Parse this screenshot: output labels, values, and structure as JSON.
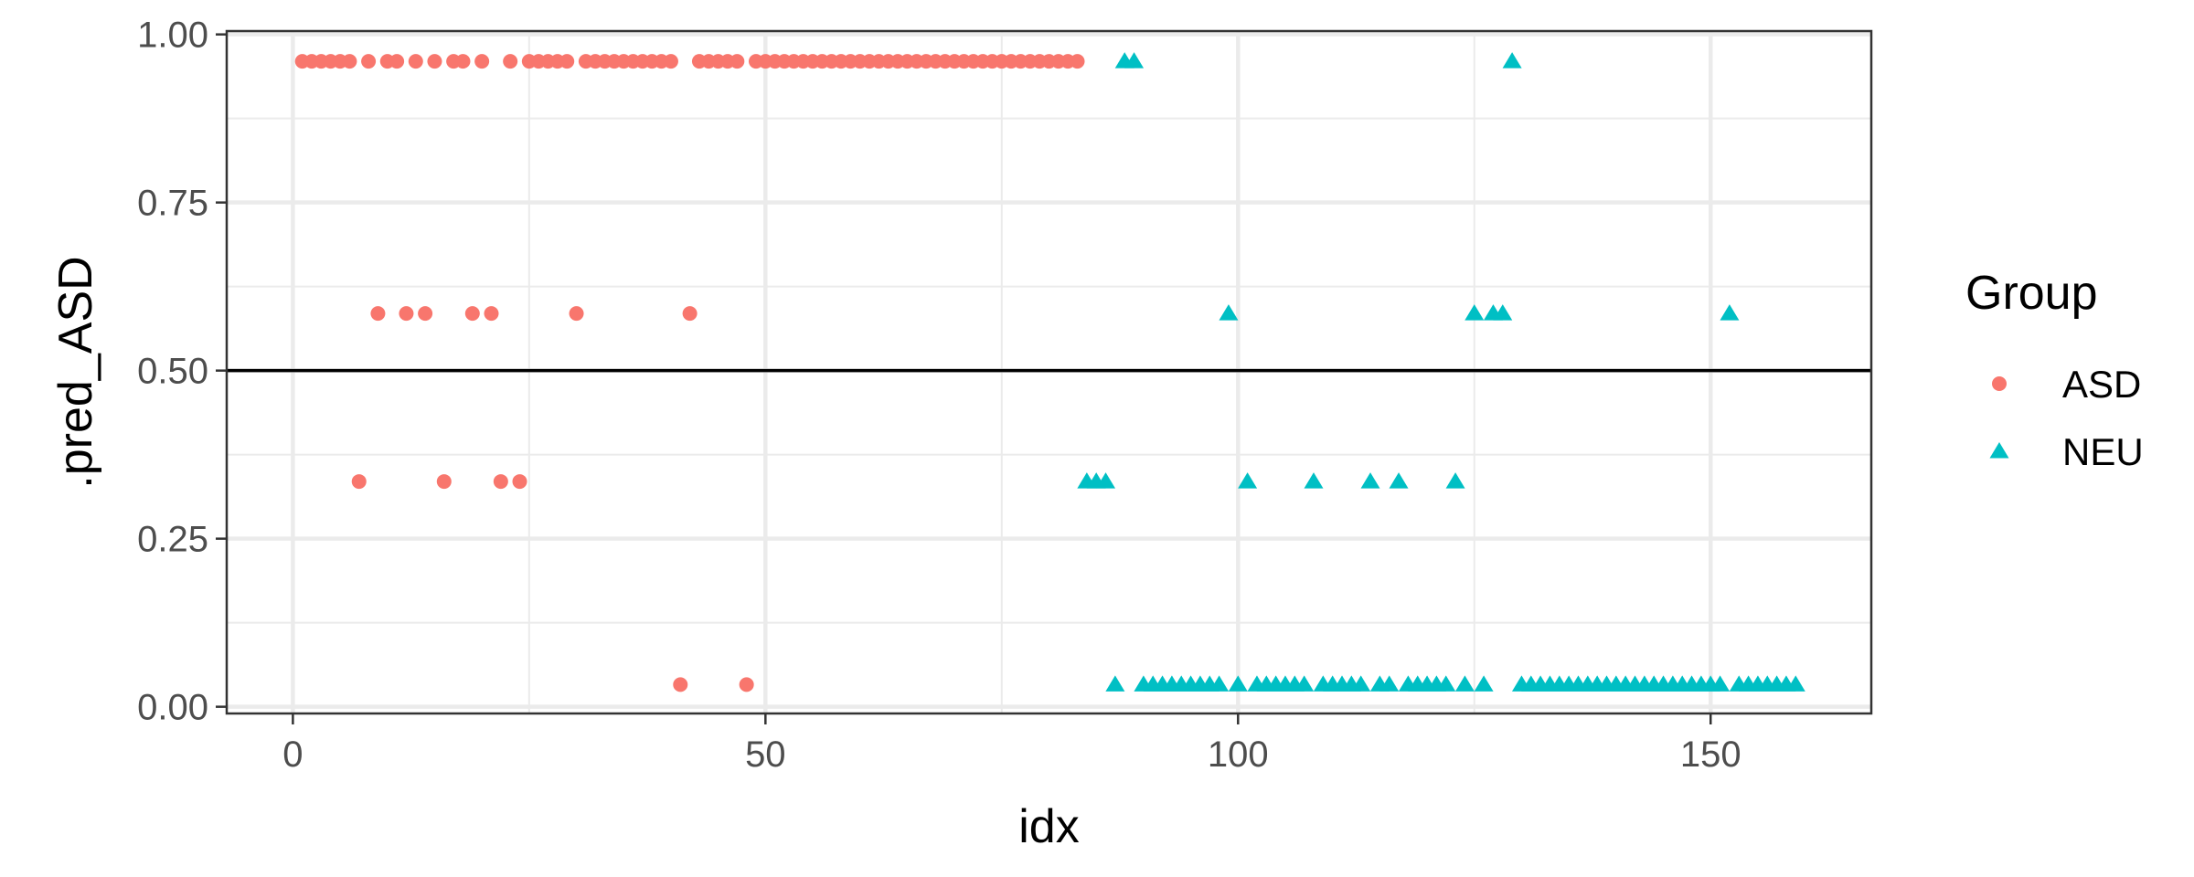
{
  "chart_data": {
    "type": "scatter",
    "title": "",
    "xlabel": "idx",
    "ylabel": ".pred_ASD",
    "xlim": [
      -7,
      167
    ],
    "ylim": [
      -0.01,
      1.005
    ],
    "x_ticks": [
      0,
      50,
      100,
      150
    ],
    "x_tick_labels": [
      "0",
      "50",
      "100",
      "150"
    ],
    "y_ticks": [
      0.0,
      0.25,
      0.5,
      0.75,
      1.0
    ],
    "y_tick_labels": [
      "0.00",
      "0.25",
      "0.50",
      "0.75",
      "1.00"
    ],
    "reference_line_y": 0.5,
    "grid": true,
    "legend_title": "Group",
    "legend_position": "right",
    "series": [
      {
        "name": "ASD",
        "marker": "circle",
        "color": "#F8766D",
        "points": [
          [
            1,
            0.96
          ],
          [
            2,
            0.96
          ],
          [
            3,
            0.96
          ],
          [
            4,
            0.96
          ],
          [
            5,
            0.96
          ],
          [
            6,
            0.96
          ],
          [
            8,
            0.96
          ],
          [
            10,
            0.96
          ],
          [
            11,
            0.96
          ],
          [
            13,
            0.96
          ],
          [
            15,
            0.96
          ],
          [
            17,
            0.96
          ],
          [
            18,
            0.96
          ],
          [
            20,
            0.96
          ],
          [
            23,
            0.96
          ],
          [
            25,
            0.96
          ],
          [
            26,
            0.96
          ],
          [
            27,
            0.96
          ],
          [
            28,
            0.96
          ],
          [
            29,
            0.96
          ],
          [
            31,
            0.96
          ],
          [
            32,
            0.96
          ],
          [
            33,
            0.96
          ],
          [
            34,
            0.96
          ],
          [
            35,
            0.96
          ],
          [
            36,
            0.96
          ],
          [
            37,
            0.96
          ],
          [
            38,
            0.96
          ],
          [
            39,
            0.96
          ],
          [
            40,
            0.96
          ],
          [
            43,
            0.96
          ],
          [
            44,
            0.96
          ],
          [
            45,
            0.96
          ],
          [
            46,
            0.96
          ],
          [
            47,
            0.96
          ],
          [
            49,
            0.96
          ],
          [
            50,
            0.96
          ],
          [
            51,
            0.96
          ],
          [
            52,
            0.96
          ],
          [
            53,
            0.96
          ],
          [
            54,
            0.96
          ],
          [
            55,
            0.96
          ],
          [
            56,
            0.96
          ],
          [
            57,
            0.96
          ],
          [
            58,
            0.96
          ],
          [
            59,
            0.96
          ],
          [
            60,
            0.96
          ],
          [
            61,
            0.96
          ],
          [
            62,
            0.96
          ],
          [
            63,
            0.96
          ],
          [
            64,
            0.96
          ],
          [
            65,
            0.96
          ],
          [
            66,
            0.96
          ],
          [
            67,
            0.96
          ],
          [
            68,
            0.96
          ],
          [
            69,
            0.96
          ],
          [
            70,
            0.96
          ],
          [
            71,
            0.96
          ],
          [
            72,
            0.96
          ],
          [
            73,
            0.96
          ],
          [
            74,
            0.96
          ],
          [
            75,
            0.96
          ],
          [
            76,
            0.96
          ],
          [
            77,
            0.96
          ],
          [
            78,
            0.96
          ],
          [
            79,
            0.96
          ],
          [
            80,
            0.96
          ],
          [
            81,
            0.96
          ],
          [
            82,
            0.96
          ],
          [
            83,
            0.96
          ],
          [
            9,
            0.585
          ],
          [
            12,
            0.585
          ],
          [
            14,
            0.585
          ],
          [
            19,
            0.585
          ],
          [
            21,
            0.585
          ],
          [
            30,
            0.585
          ],
          [
            42,
            0.585
          ],
          [
            7,
            0.335
          ],
          [
            16,
            0.335
          ],
          [
            22,
            0.335
          ],
          [
            24,
            0.335
          ],
          [
            41,
            0.033
          ],
          [
            48,
            0.033
          ]
        ]
      },
      {
        "name": "NEU",
        "marker": "triangle",
        "color": "#00BFC4",
        "points": [
          [
            88,
            0.96
          ],
          [
            89,
            0.96
          ],
          [
            129,
            0.96
          ],
          [
            99,
            0.585
          ],
          [
            125,
            0.585
          ],
          [
            127,
            0.585
          ],
          [
            128,
            0.585
          ],
          [
            152,
            0.585
          ],
          [
            84,
            0.335
          ],
          [
            85,
            0.335
          ],
          [
            86,
            0.335
          ],
          [
            101,
            0.335
          ],
          [
            108,
            0.335
          ],
          [
            114,
            0.335
          ],
          [
            117,
            0.335
          ],
          [
            123,
            0.335
          ],
          [
            87,
            0.033
          ],
          [
            90,
            0.033
          ],
          [
            91,
            0.033
          ],
          [
            92,
            0.033
          ],
          [
            93,
            0.033
          ],
          [
            94,
            0.033
          ],
          [
            95,
            0.033
          ],
          [
            96,
            0.033
          ],
          [
            97,
            0.033
          ],
          [
            98,
            0.033
          ],
          [
            100,
            0.033
          ],
          [
            102,
            0.033
          ],
          [
            103,
            0.033
          ],
          [
            104,
            0.033
          ],
          [
            105,
            0.033
          ],
          [
            106,
            0.033
          ],
          [
            107,
            0.033
          ],
          [
            109,
            0.033
          ],
          [
            110,
            0.033
          ],
          [
            111,
            0.033
          ],
          [
            112,
            0.033
          ],
          [
            113,
            0.033
          ],
          [
            115,
            0.033
          ],
          [
            116,
            0.033
          ],
          [
            118,
            0.033
          ],
          [
            119,
            0.033
          ],
          [
            120,
            0.033
          ],
          [
            121,
            0.033
          ],
          [
            122,
            0.033
          ],
          [
            124,
            0.033
          ],
          [
            126,
            0.033
          ],
          [
            130,
            0.033
          ],
          [
            131,
            0.033
          ],
          [
            132,
            0.033
          ],
          [
            133,
            0.033
          ],
          [
            134,
            0.033
          ],
          [
            135,
            0.033
          ],
          [
            136,
            0.033
          ],
          [
            137,
            0.033
          ],
          [
            138,
            0.033
          ],
          [
            139,
            0.033
          ],
          [
            140,
            0.033
          ],
          [
            141,
            0.033
          ],
          [
            142,
            0.033
          ],
          [
            143,
            0.033
          ],
          [
            144,
            0.033
          ],
          [
            145,
            0.033
          ],
          [
            146,
            0.033
          ],
          [
            147,
            0.033
          ],
          [
            148,
            0.033
          ],
          [
            149,
            0.033
          ],
          [
            150,
            0.033
          ],
          [
            151,
            0.033
          ],
          [
            153,
            0.033
          ],
          [
            154,
            0.033
          ],
          [
            155,
            0.033
          ],
          [
            156,
            0.033
          ],
          [
            157,
            0.033
          ],
          [
            158,
            0.033
          ],
          [
            159,
            0.033
          ]
        ]
      }
    ]
  }
}
